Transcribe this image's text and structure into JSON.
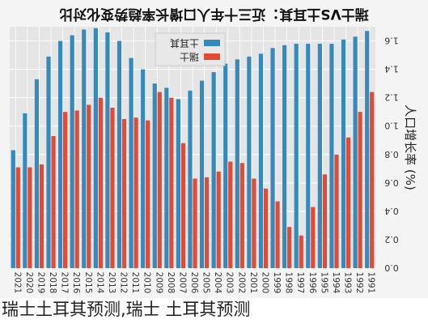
{
  "caption": "瑞士土耳其预测,瑞士 土耳其预测",
  "chart_data": {
    "type": "bar",
    "orientation": "mirrored-photo",
    "title": "瑞士VS土耳其：近三十年人口增长率趋势变化对比",
    "ylabel": "人口增长率 (%)",
    "ylim": [
      0,
      1.7
    ],
    "yticks": [
      "0.0",
      "0.2",
      "0.4",
      "0.6",
      "0.8",
      "1.0",
      "1.2",
      "1.4",
      "1.6"
    ],
    "grid": true,
    "legend_position": "top-left",
    "categories": [
      "1991",
      "1992",
      "1993",
      "1994",
      "1995",
      "1996",
      "1997",
      "1998",
      "1999",
      "2000",
      "2001",
      "2002",
      "2003",
      "2004",
      "2005",
      "2006",
      "2007",
      "2008",
      "2009",
      "2010",
      "2011",
      "2012",
      "2013",
      "2014",
      "2015",
      "2016",
      "2017",
      "2018",
      "2019",
      "2020",
      "2021"
    ],
    "series": [
      {
        "name": "瑞士",
        "color": "#e24a33",
        "values": [
          1.24,
          1.1,
          0.92,
          0.8,
          0.66,
          0.43,
          0.23,
          0.29,
          0.47,
          0.56,
          0.63,
          0.74,
          0.75,
          0.68,
          0.64,
          0.63,
          0.88,
          1.2,
          1.24,
          1.04,
          1.06,
          1.05,
          1.13,
          1.2,
          1.15,
          1.11,
          1.1,
          0.93,
          0.73,
          0.71,
          0.71
        ]
      },
      {
        "name": "土耳其",
        "color": "#348abd",
        "values": [
          1.67,
          1.63,
          1.61,
          1.58,
          1.58,
          1.58,
          1.58,
          1.57,
          1.55,
          1.51,
          1.49,
          1.47,
          1.44,
          1.38,
          1.32,
          1.25,
          1.19,
          1.27,
          1.3,
          1.4,
          1.48,
          1.6,
          1.66,
          1.69,
          1.68,
          1.64,
          1.6,
          1.49,
          1.33,
          1.09,
          0.83
        ]
      }
    ]
  }
}
